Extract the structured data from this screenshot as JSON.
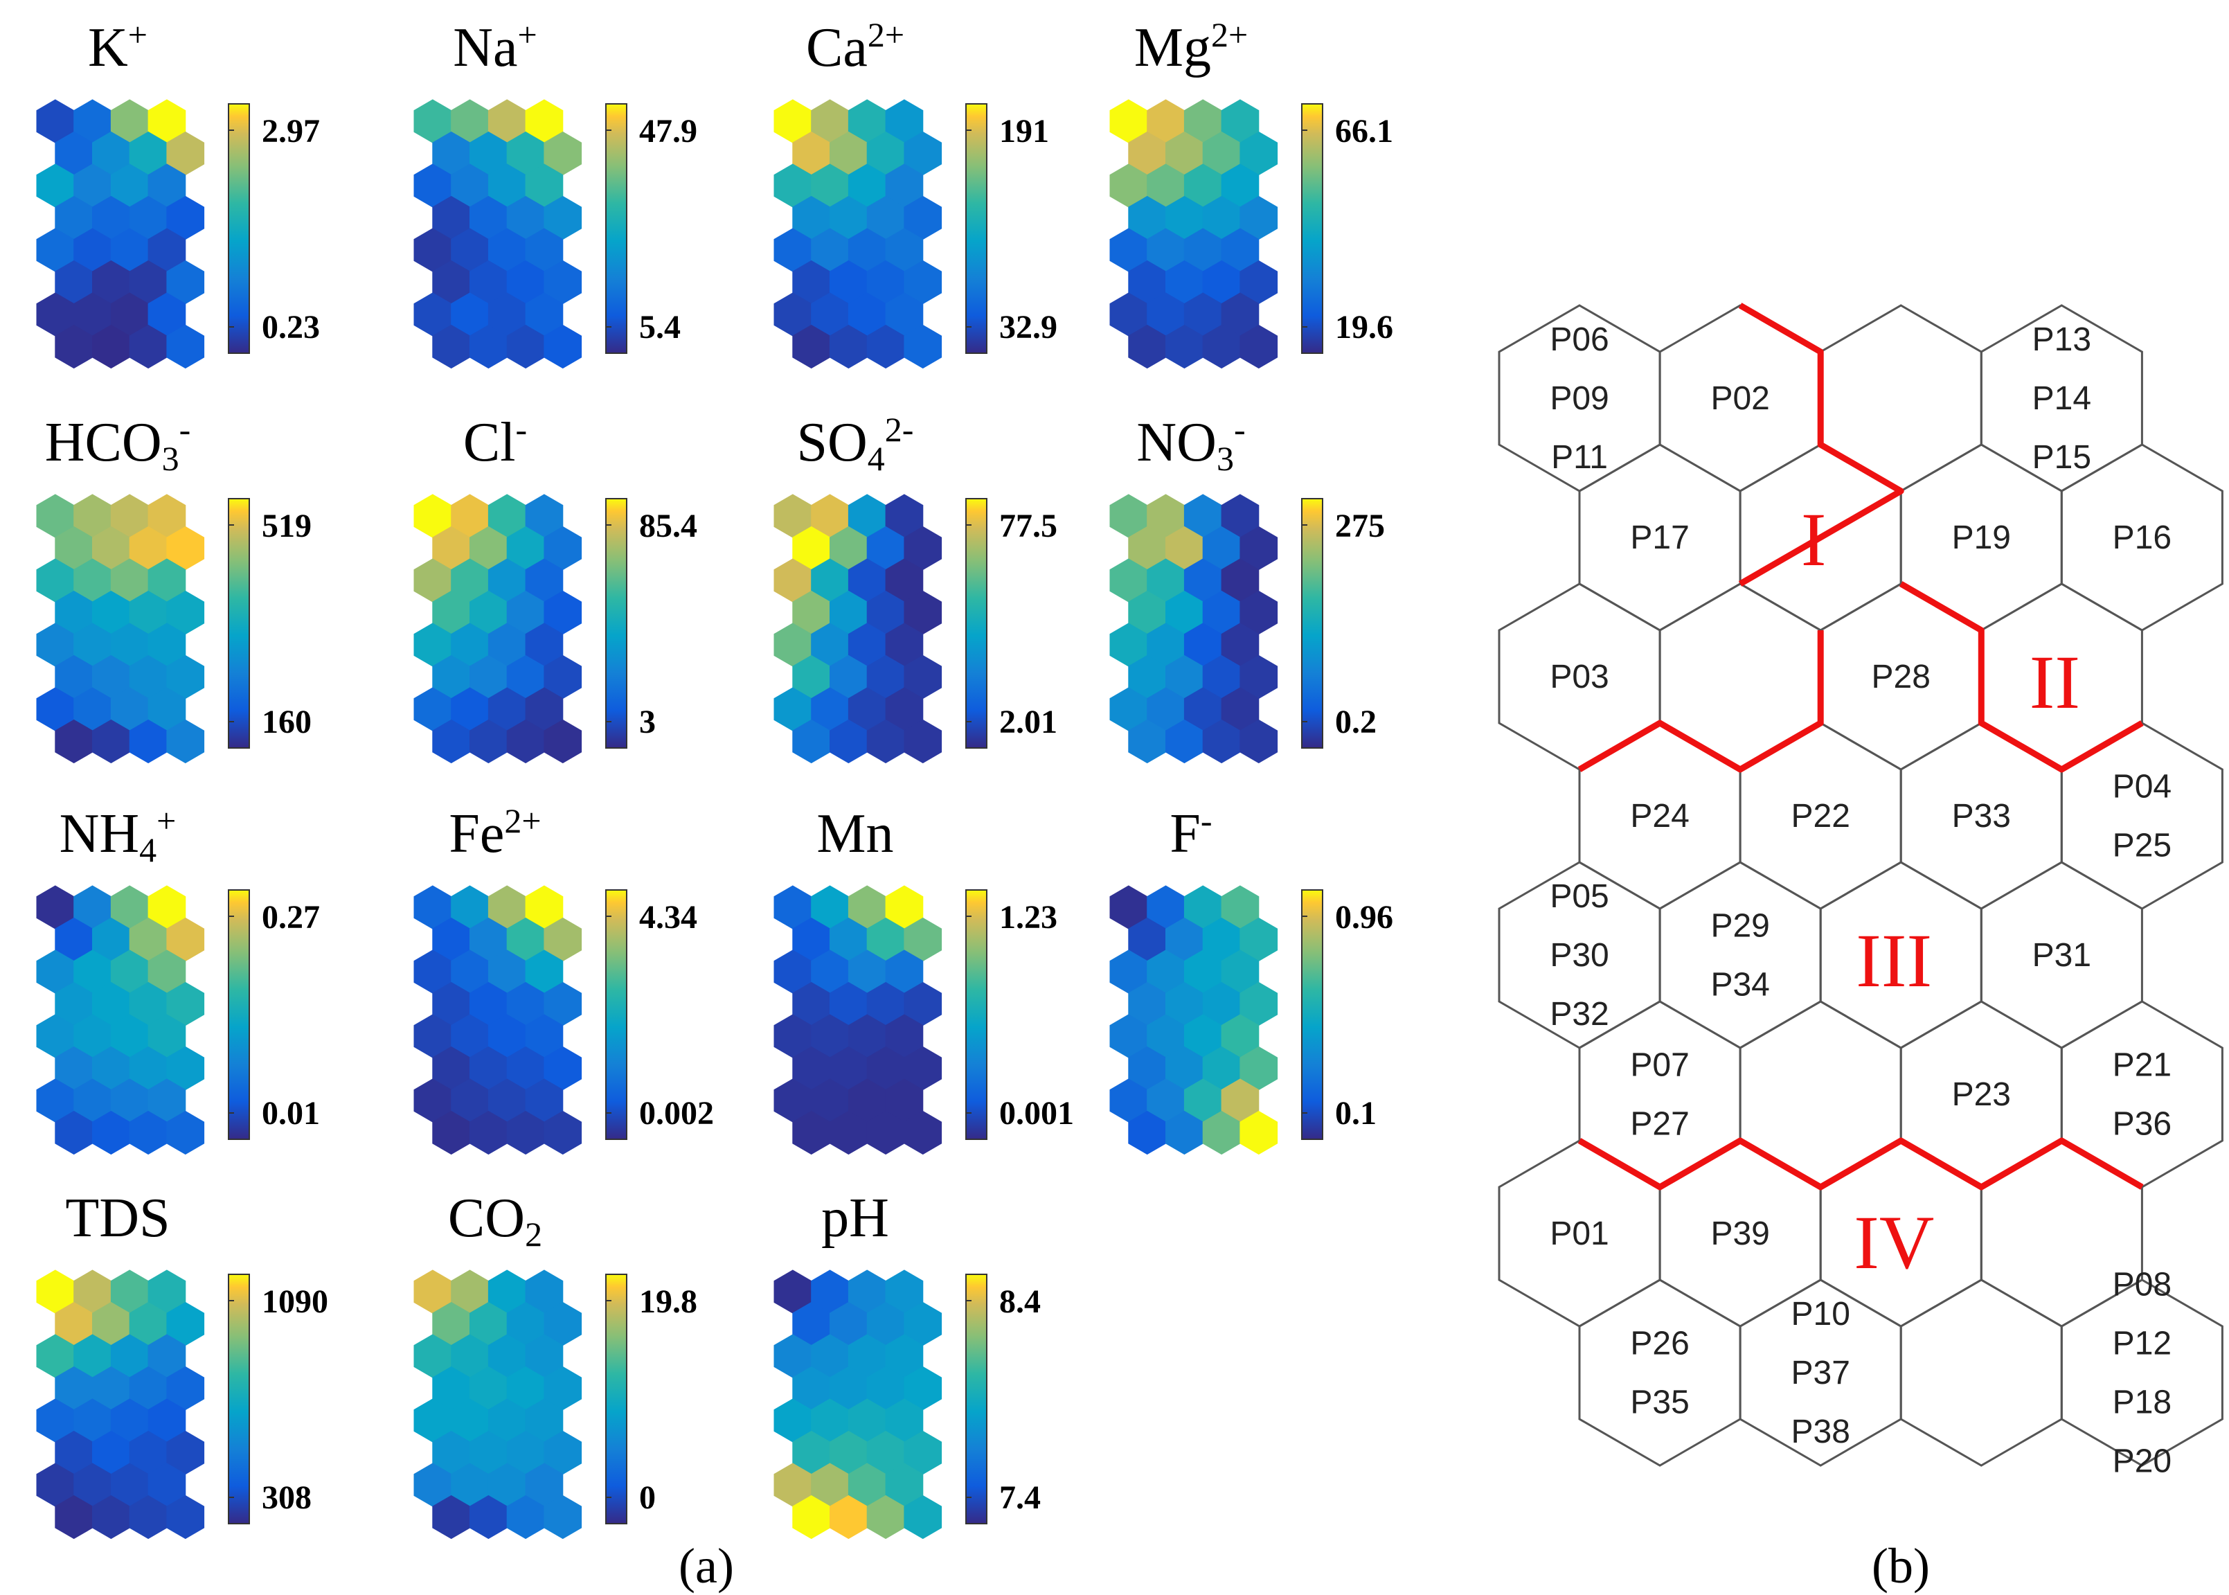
{
  "panel_a": {
    "caption": "(a)",
    "maps": [
      {
        "title": {
          "base": "K",
          "sup": "+",
          "sub": ""
        },
        "max": "2.97",
        "min": "0.23",
        "grid": [
          [
            0.1,
            0.22,
            0.75,
            1.0
          ],
          [
            0.2,
            0.35,
            0.5,
            0.85
          ],
          [
            0.45,
            0.3,
            0.38,
            0.28
          ],
          [
            0.25,
            0.2,
            0.22,
            0.15
          ],
          [
            0.22,
            0.14,
            0.18,
            0.1
          ],
          [
            0.1,
            0.04,
            0.05,
            0.22
          ],
          [
            0.03,
            0.03,
            0.02,
            0.15
          ],
          [
            0.02,
            0.01,
            0.04,
            0.18
          ]
        ]
      },
      {
        "title": {
          "base": "Na",
          "sup": "+",
          "sub": ""
        },
        "max": "47.9",
        "min": "5.4",
        "grid": [
          [
            0.62,
            0.7,
            0.85,
            1.0
          ],
          [
            0.3,
            0.4,
            0.55,
            0.75
          ],
          [
            0.18,
            0.28,
            0.4,
            0.55
          ],
          [
            0.08,
            0.2,
            0.28,
            0.35
          ],
          [
            0.05,
            0.1,
            0.18,
            0.22
          ],
          [
            0.06,
            0.12,
            0.15,
            0.2
          ],
          [
            0.1,
            0.15,
            0.12,
            0.18
          ],
          [
            0.08,
            0.12,
            0.1,
            0.15
          ]
        ]
      },
      {
        "title": {
          "base": "Ca",
          "sup": "2+",
          "sub": ""
        },
        "max": "191",
        "min": "32.9",
        "grid": [
          [
            1.0,
            0.82,
            0.55,
            0.4
          ],
          [
            0.9,
            0.78,
            0.52,
            0.35
          ],
          [
            0.55,
            0.58,
            0.45,
            0.3
          ],
          [
            0.35,
            0.38,
            0.3,
            0.22
          ],
          [
            0.2,
            0.28,
            0.22,
            0.25
          ],
          [
            0.1,
            0.15,
            0.18,
            0.22
          ],
          [
            0.08,
            0.12,
            0.15,
            0.2
          ],
          [
            0.03,
            0.08,
            0.1,
            0.2
          ]
        ]
      },
      {
        "title": {
          "base": "Mg",
          "sup": "2+",
          "sub": ""
        },
        "max": "66.1",
        "min": "19.6",
        "grid": [
          [
            1.0,
            0.9,
            0.72,
            0.55
          ],
          [
            0.88,
            0.8,
            0.68,
            0.5
          ],
          [
            0.75,
            0.7,
            0.58,
            0.45
          ],
          [
            0.38,
            0.42,
            0.4,
            0.32
          ],
          [
            0.2,
            0.28,
            0.25,
            0.22
          ],
          [
            0.12,
            0.18,
            0.15,
            0.1
          ],
          [
            0.08,
            0.12,
            0.1,
            0.06
          ],
          [
            0.05,
            0.08,
            0.06,
            0.04
          ]
        ]
      },
      {
        "title": {
          "base": "HCO",
          "sup": "-",
          "sub": "3"
        },
        "max": "519",
        "min": "160",
        "grid": [
          [
            0.7,
            0.8,
            0.85,
            0.9
          ],
          [
            0.72,
            0.82,
            0.92,
            0.95
          ],
          [
            0.55,
            0.65,
            0.72,
            0.62
          ],
          [
            0.4,
            0.45,
            0.5,
            0.48
          ],
          [
            0.32,
            0.38,
            0.4,
            0.42
          ],
          [
            0.25,
            0.3,
            0.35,
            0.38
          ],
          [
            0.15,
            0.22,
            0.3,
            0.35
          ],
          [
            0.02,
            0.05,
            0.15,
            0.3
          ]
        ]
      },
      {
        "title": {
          "base": "Cl",
          "sup": "-",
          "sub": ""
        },
        "max": "85.4",
        "min": "3",
        "grid": [
          [
            1.0,
            0.92,
            0.6,
            0.3
          ],
          [
            0.9,
            0.75,
            0.48,
            0.25
          ],
          [
            0.8,
            0.62,
            0.38,
            0.2
          ],
          [
            0.62,
            0.5,
            0.3,
            0.15
          ],
          [
            0.48,
            0.4,
            0.28,
            0.12
          ],
          [
            0.35,
            0.3,
            0.2,
            0.1
          ],
          [
            0.22,
            0.15,
            0.1,
            0.05
          ],
          [
            0.12,
            0.08,
            0.04,
            0.02
          ]
        ]
      },
      {
        "title": {
          "base": "SO",
          "sup": "2-",
          "sub": "4"
        },
        "max": "77.5",
        "min": "2.01",
        "grid": [
          [
            0.85,
            0.9,
            0.4,
            0.05
          ],
          [
            1.0,
            0.72,
            0.2,
            0.03
          ],
          [
            0.88,
            0.5,
            0.12,
            0.02
          ],
          [
            0.75,
            0.4,
            0.1,
            0.02
          ],
          [
            0.7,
            0.35,
            0.12,
            0.04
          ],
          [
            0.55,
            0.28,
            0.1,
            0.05
          ],
          [
            0.4,
            0.2,
            0.08,
            0.04
          ],
          [
            0.25,
            0.12,
            0.06,
            0.04
          ]
        ]
      },
      {
        "title": {
          "base": "NO",
          "sup": "-",
          "sub": "3"
        },
        "max": "275",
        "min": "0.2",
        "grid": [
          [
            0.7,
            0.8,
            0.3,
            0.05
          ],
          [
            0.8,
            0.85,
            0.25,
            0.03
          ],
          [
            0.65,
            0.55,
            0.2,
            0.02
          ],
          [
            0.58,
            0.45,
            0.18,
            0.03
          ],
          [
            0.5,
            0.4,
            0.15,
            0.04
          ],
          [
            0.4,
            0.32,
            0.12,
            0.05
          ],
          [
            0.35,
            0.28,
            0.1,
            0.04
          ],
          [
            0.3,
            0.2,
            0.08,
            0.05
          ]
        ]
      },
      {
        "title": {
          "base": "NH",
          "sup": "+",
          "sub": "4"
        },
        "max": "0.27",
        "min": "0.01",
        "grid": [
          [
            0.02,
            0.3,
            0.7,
            1.0
          ],
          [
            0.15,
            0.4,
            0.75,
            0.9
          ],
          [
            0.35,
            0.45,
            0.55,
            0.7
          ],
          [
            0.4,
            0.45,
            0.5,
            0.55
          ],
          [
            0.38,
            0.42,
            0.45,
            0.5
          ],
          [
            0.3,
            0.35,
            0.4,
            0.42
          ],
          [
            0.2,
            0.25,
            0.28,
            0.3
          ],
          [
            0.12,
            0.15,
            0.18,
            0.2
          ]
        ]
      },
      {
        "title": {
          "base": "Fe",
          "sup": "2+",
          "sub": ""
        },
        "max": "4.34",
        "min": "0.002",
        "grid": [
          [
            0.2,
            0.4,
            0.8,
            1.0
          ],
          [
            0.15,
            0.3,
            0.6,
            0.8
          ],
          [
            0.12,
            0.2,
            0.3,
            0.45
          ],
          [
            0.1,
            0.15,
            0.2,
            0.25
          ],
          [
            0.08,
            0.12,
            0.15,
            0.18
          ],
          [
            0.05,
            0.1,
            0.12,
            0.15
          ],
          [
            0.03,
            0.06,
            0.08,
            0.1
          ],
          [
            0.02,
            0.04,
            0.05,
            0.06
          ]
        ]
      },
      {
        "title": {
          "base": "Mn",
          "sup": "",
          "sub": ""
        },
        "max": "1.23",
        "min": "0.001",
        "grid": [
          [
            0.2,
            0.45,
            0.75,
            1.0
          ],
          [
            0.15,
            0.35,
            0.6,
            0.7
          ],
          [
            0.12,
            0.2,
            0.3,
            0.25
          ],
          [
            0.08,
            0.12,
            0.1,
            0.08
          ],
          [
            0.05,
            0.06,
            0.05,
            0.04
          ],
          [
            0.04,
            0.04,
            0.03,
            0.03
          ],
          [
            0.03,
            0.03,
            0.02,
            0.02
          ],
          [
            0.02,
            0.02,
            0.02,
            0.02
          ]
        ]
      },
      {
        "title": {
          "base": "F",
          "sup": "-",
          "sub": ""
        },
        "max": "0.96",
        "min": "0.1",
        "grid": [
          [
            0.02,
            0.2,
            0.5,
            0.65
          ],
          [
            0.1,
            0.3,
            0.45,
            0.55
          ],
          [
            0.25,
            0.35,
            0.45,
            0.5
          ],
          [
            0.3,
            0.38,
            0.42,
            0.55
          ],
          [
            0.28,
            0.35,
            0.45,
            0.6
          ],
          [
            0.25,
            0.35,
            0.5,
            0.65
          ],
          [
            0.2,
            0.3,
            0.55,
            0.85
          ],
          [
            0.15,
            0.28,
            0.7,
            1.0
          ]
        ]
      },
      {
        "title": {
          "base": "TDS",
          "sup": "",
          "sub": ""
        },
        "max": "1090",
        "min": "308",
        "grid": [
          [
            1.0,
            0.85,
            0.65,
            0.55
          ],
          [
            0.9,
            0.78,
            0.58,
            0.45
          ],
          [
            0.6,
            0.5,
            0.4,
            0.3
          ],
          [
            0.3,
            0.3,
            0.25,
            0.2
          ],
          [
            0.2,
            0.22,
            0.18,
            0.15
          ],
          [
            0.1,
            0.15,
            0.12,
            0.1
          ],
          [
            0.05,
            0.08,
            0.1,
            0.12
          ],
          [
            0.02,
            0.05,
            0.08,
            0.1
          ]
        ]
      },
      {
        "title": {
          "base": "CO",
          "sup": "",
          "sub": "2"
        },
        "max": "19.8",
        "min": "0",
        "grid": [
          [
            0.9,
            0.8,
            0.45,
            0.35
          ],
          [
            0.7,
            0.55,
            0.4,
            0.35
          ],
          [
            0.55,
            0.5,
            0.42,
            0.38
          ],
          [
            0.45,
            0.48,
            0.45,
            0.4
          ],
          [
            0.45,
            0.45,
            0.42,
            0.4
          ],
          [
            0.38,
            0.4,
            0.38,
            0.35
          ],
          [
            0.3,
            0.35,
            0.35,
            0.3
          ],
          [
            0.05,
            0.1,
            0.25,
            0.3
          ]
        ]
      },
      {
        "title": {
          "base": "pH",
          "sup": "",
          "sub": ""
        },
        "max": "8.4",
        "min": "7.4",
        "grid": [
          [
            0.02,
            0.18,
            0.32,
            0.38
          ],
          [
            0.18,
            0.28,
            0.35,
            0.4
          ],
          [
            0.32,
            0.35,
            0.4,
            0.42
          ],
          [
            0.38,
            0.4,
            0.42,
            0.45
          ],
          [
            0.45,
            0.48,
            0.5,
            0.48
          ],
          [
            0.55,
            0.58,
            0.55,
            0.52
          ],
          [
            0.85,
            0.8,
            0.65,
            0.55
          ],
          [
            1.0,
            0.95,
            0.75,
            0.5
          ]
        ]
      }
    ]
  },
  "panel_b": {
    "caption": "(b)",
    "regions": [
      "I",
      "II",
      "III",
      "IV"
    ],
    "nodes": [
      {
        "row": 0,
        "col": 0,
        "labels": [
          "P06",
          "P09",
          "P11"
        ]
      },
      {
        "row": 0,
        "col": 1,
        "labels": [
          "P02"
        ]
      },
      {
        "row": 0,
        "col": 2,
        "labels": []
      },
      {
        "row": 0,
        "col": 3,
        "labels": [
          "P13",
          "P14",
          "P15"
        ]
      },
      {
        "row": 1,
        "col": 0,
        "labels": [
          "P17"
        ]
      },
      {
        "row": 1,
        "col": 1,
        "labels": []
      },
      {
        "row": 1,
        "col": 2,
        "labels": [
          "P19"
        ]
      },
      {
        "row": 1,
        "col": 3,
        "labels": [
          "P16"
        ]
      },
      {
        "row": 2,
        "col": 0,
        "labels": [
          "P03"
        ]
      },
      {
        "row": 2,
        "col": 1,
        "labels": []
      },
      {
        "row": 2,
        "col": 2,
        "labels": [
          "P28"
        ]
      },
      {
        "row": 2,
        "col": 3,
        "labels": []
      },
      {
        "row": 3,
        "col": 0,
        "labels": [
          "P24"
        ]
      },
      {
        "row": 3,
        "col": 1,
        "labels": [
          "P22"
        ]
      },
      {
        "row": 3,
        "col": 2,
        "labels": [
          "P33"
        ]
      },
      {
        "row": 3,
        "col": 3,
        "labels": [
          "P04",
          "P25"
        ]
      },
      {
        "row": 4,
        "col": 0,
        "labels": [
          "P05",
          "P30",
          "P32"
        ]
      },
      {
        "row": 4,
        "col": 1,
        "labels": [
          "P29",
          "P34"
        ]
      },
      {
        "row": 4,
        "col": 2,
        "labels": []
      },
      {
        "row": 4,
        "col": 3,
        "labels": [
          "P31"
        ]
      },
      {
        "row": 5,
        "col": 0,
        "labels": [
          "P07",
          "P27"
        ]
      },
      {
        "row": 5,
        "col": 1,
        "labels": []
      },
      {
        "row": 5,
        "col": 2,
        "labels": [
          "P23"
        ]
      },
      {
        "row": 5,
        "col": 3,
        "labels": [
          "P21",
          "P36"
        ]
      },
      {
        "row": 6,
        "col": 0,
        "labels": [
          "P01"
        ]
      },
      {
        "row": 6,
        "col": 1,
        "labels": [
          "P39"
        ]
      },
      {
        "row": 6,
        "col": 2,
        "labels": []
      },
      {
        "row": 6,
        "col": 3,
        "labels": []
      },
      {
        "row": 7,
        "col": 0,
        "labels": [
          "P26",
          "P35"
        ]
      },
      {
        "row": 7,
        "col": 1,
        "labels": [
          "P10",
          "P37",
          "P38"
        ]
      },
      {
        "row": 7,
        "col": 2,
        "labels": []
      },
      {
        "row": 7,
        "col": 3,
        "labels": [
          "P08",
          "P12",
          "P18",
          "P20"
        ]
      }
    ]
  }
}
